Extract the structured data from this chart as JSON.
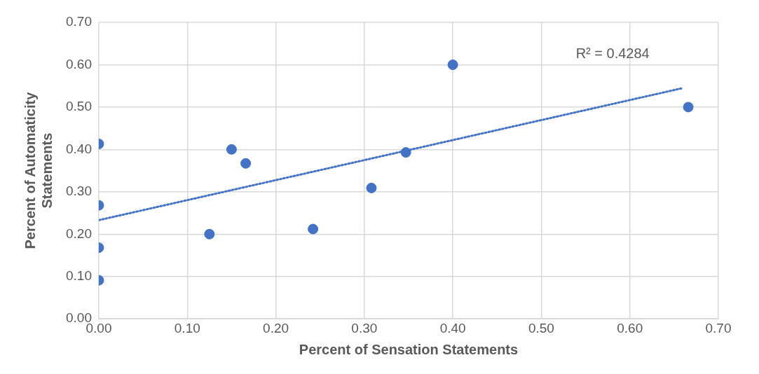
{
  "chart_data": {
    "type": "scatter",
    "xlabel": "Percent of Sensation Statements",
    "ylabel": "Percent of Automaticity Statements",
    "xlim": [
      0,
      0.7
    ],
    "xticks": [
      {
        "value": 0,
        "label": "0.00"
      },
      {
        "value": 0.1,
        "label": "0.10"
      },
      {
        "value": 0.2,
        "label": "0.20"
      },
      {
        "value": 0.3,
        "label": "0.30"
      },
      {
        "value": 0.4,
        "label": "0.40"
      },
      {
        "value": 0.5,
        "label": "0.50"
      },
      {
        "value": 0.6,
        "label": "0.60"
      },
      {
        "value": 0.7,
        "label": "0.70"
      }
    ],
    "ylim": [
      0,
      0.7
    ],
    "yticks": [
      {
        "value": 0,
        "label": "0.00"
      },
      {
        "value": 0.1,
        "label": "0.10"
      },
      {
        "value": 0.2,
        "label": "0.20"
      },
      {
        "value": 0.3,
        "label": "0.30"
      },
      {
        "value": 0.4,
        "label": "0.40"
      },
      {
        "value": 0.5,
        "label": "0.50"
      },
      {
        "value": 0.6,
        "label": "0.60"
      },
      {
        "value": 0.7,
        "label": "0.70"
      }
    ],
    "grid": true,
    "legend": false,
    "marker": "circle",
    "series": [
      {
        "type": "scatter",
        "color": "#4472c4",
        "x": [
          0,
          0,
          0,
          0,
          0.125,
          0.15,
          0.166,
          0.242,
          0.308,
          0.347,
          0.4,
          0.666
        ],
        "values": [
          0.413,
          0.268,
          0.168,
          0.091,
          0.2,
          0.4,
          0.367,
          0.212,
          0.309,
          0.393,
          0.6,
          0.5
        ]
      },
      {
        "type": "line",
        "color": "#4472c4",
        "line_style": "dotted",
        "marker": "none",
        "x": [
          0,
          0.66
        ],
        "values": [
          0.233,
          0.545
        ]
      }
    ],
    "annotations": [
      "R² = 0.4284"
    ]
  }
}
